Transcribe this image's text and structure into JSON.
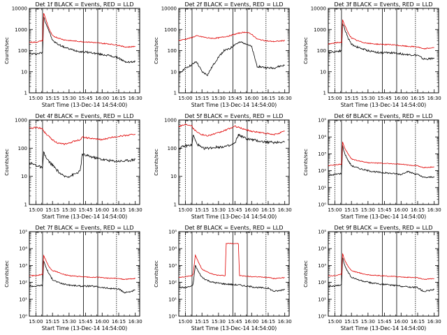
{
  "colors": {
    "events": "#000000",
    "lld": "#e00000",
    "axis": "#000000",
    "background": "#ffffff"
  },
  "chart_data": [
    {
      "type": "line",
      "title": "Det  1f BLACK = Events, RED = LLD",
      "ylabel": "Counts/sec",
      "xlabel": "Start Time (13-Dec-14 14:54:00)",
      "yscale": "log",
      "ylim": [
        1,
        10000
      ],
      "yticks": [
        "1",
        "10",
        "100",
        "1000",
        "10000"
      ],
      "xticks": [
        "15:00",
        "15:15",
        "15:30",
        "15:45",
        "16:00",
        "16:15",
        "16:30"
      ],
      "x": [
        "14:54",
        "15:00",
        "15:06",
        "15:07",
        "15:09",
        "15:12",
        "15:15",
        "15:20",
        "15:25",
        "15:30",
        "15:40",
        "15:50",
        "15:56",
        "16:00",
        "16:05",
        "16:15",
        "16:20",
        "16:25",
        "16:30"
      ],
      "series": [
        {
          "name": "Events",
          "values": [
            70,
            70,
            80,
            4000,
            2000,
            800,
            300,
            200,
            150,
            120,
            90,
            80,
            70,
            65,
            60,
            45,
            30,
            28,
            30
          ]
        },
        {
          "name": "LLD",
          "values": [
            250,
            250,
            300,
            6000,
            3000,
            1000,
            500,
            400,
            330,
            300,
            270,
            250,
            230,
            220,
            210,
            180,
            150,
            150,
            160
          ]
        }
      ]
    },
    {
      "type": "line",
      "title": "Det  2f BLACK = Events, RED = LLD",
      "ylabel": "Counts/sec",
      "xlabel": "Start Time (13-Dec-14 14:54:00)",
      "yscale": "log",
      "ylim": [
        1,
        10000
      ],
      "yticks": [
        "1",
        "10",
        "100",
        "1000",
        "10000"
      ],
      "xticks": [
        "15:00",
        "15:15",
        "15:30",
        "15:45",
        "16:00",
        "16:15",
        "16:30"
      ],
      "x": [
        "14:54",
        "15:00",
        "15:05",
        "15:10",
        "15:15",
        "15:20",
        "15:25",
        "15:30",
        "15:35",
        "15:40",
        "15:45",
        "15:50",
        "15:55",
        "16:00",
        "16:05",
        "16:15",
        "16:20",
        "16:25",
        "16:30"
      ],
      "series": [
        {
          "name": "Events",
          "values": [
            8,
            15,
            20,
            30,
            10,
            7,
            20,
            50,
            100,
            120,
            200,
            250,
            220,
            150,
            18,
            15,
            15,
            18,
            20
          ]
        },
        {
          "name": "LLD",
          "values": [
            300,
            350,
            400,
            500,
            450,
            400,
            380,
            400,
            450,
            500,
            600,
            700,
            750,
            600,
            350,
            280,
            270,
            280,
            300
          ]
        }
      ]
    },
    {
      "type": "line",
      "title": "Det  3f BLACK = Events, RED = LLD",
      "ylabel": "Counts/sec",
      "xlabel": "Start Time (13-Dec-14 14:54:00)",
      "yscale": "log",
      "ylim": [
        1,
        10000
      ],
      "yticks": [
        "1",
        "10",
        "100",
        "1000",
        "10000"
      ],
      "xticks": [
        "15:00",
        "15:15",
        "15:30",
        "15:45",
        "16:00",
        "16:15",
        "16:30"
      ],
      "x": [
        "14:54",
        "15:00",
        "15:06",
        "15:07",
        "15:09",
        "15:12",
        "15:15",
        "15:20",
        "15:25",
        "15:30",
        "15:40",
        "15:50",
        "15:56",
        "16:00",
        "16:05",
        "16:15",
        "16:20",
        "16:25",
        "16:30"
      ],
      "series": [
        {
          "name": "Events",
          "values": [
            80,
            90,
            100,
            2000,
            1000,
            400,
            200,
            150,
            120,
            100,
            80,
            80,
            75,
            70,
            65,
            60,
            40,
            40,
            45
          ]
        },
        {
          "name": "LLD",
          "values": [
            200,
            230,
            250,
            3000,
            1500,
            700,
            400,
            300,
            250,
            220,
            200,
            190,
            180,
            170,
            160,
            150,
            120,
            130,
            140
          ]
        }
      ]
    },
    {
      "type": "line",
      "title": "Det  4f BLACK = Events, RED = LLD",
      "ylabel": "Counts/sec",
      "xlabel": "Start Time (13-Dec-14 14:54:00)",
      "yscale": "log",
      "ylim": [
        1,
        1000
      ],
      "yticks": [
        "1",
        "10",
        "100",
        "1000"
      ],
      "xticks": [
        "15:00",
        "15:15",
        "15:30",
        "15:45",
        "16:00",
        "16:15",
        "16:30"
      ],
      "x": [
        "14:54",
        "15:00",
        "15:06",
        "15:07",
        "15:10",
        "15:15",
        "15:20",
        "15:25",
        "15:30",
        "15:35",
        "15:40",
        "15:42",
        "15:50",
        "16:00",
        "16:10",
        "16:20",
        "16:30"
      ],
      "series": [
        {
          "name": "Events",
          "values": [
            30,
            25,
            20,
            70,
            40,
            25,
            15,
            10,
            10,
            12,
            15,
            60,
            50,
            40,
            35,
            35,
            40
          ]
        },
        {
          "name": "LLD",
          "values": [
            500,
            550,
            500,
            400,
            300,
            200,
            150,
            140,
            150,
            180,
            200,
            250,
            220,
            200,
            250,
            280,
            320
          ]
        }
      ]
    },
    {
      "type": "line",
      "title": "Det  5f BLACK = Events, RED = LLD",
      "ylabel": "Counts/sec",
      "xlabel": "Start Time (13-Dec-14 14:54:00)",
      "yscale": "log",
      "ylim": [
        1,
        1000
      ],
      "yticks": [
        "1",
        "10",
        "100",
        "1000"
      ],
      "xticks": [
        "15:00",
        "15:15",
        "15:30",
        "15:45",
        "16:00",
        "16:15",
        "16:30"
      ],
      "x": [
        "14:54",
        "15:00",
        "15:06",
        "15:07",
        "15:10",
        "15:15",
        "15:20",
        "15:30",
        "15:40",
        "15:45",
        "15:48",
        "15:55",
        "16:00",
        "16:10",
        "16:20",
        "16:30"
      ],
      "series": [
        {
          "name": "Events",
          "values": [
            100,
            120,
            130,
            300,
            150,
            100,
            100,
            110,
            120,
            150,
            300,
            220,
            200,
            170,
            160,
            170
          ]
        },
        {
          "name": "LLD",
          "values": [
            600,
            700,
            650,
            500,
            400,
            300,
            280,
            350,
            500,
            600,
            550,
            450,
            400,
            350,
            300,
            400
          ]
        }
      ]
    },
    {
      "type": "line",
      "title": "Det  6f BLACK = Events, RED = LLD",
      "ylabel": "Counts/sec",
      "xlabel": "Start Time (13-Dec-14 14:54:00)",
      "yscale": "log",
      "ylim": [
        1,
        100000
      ],
      "yticks": [
        "10⁰",
        "10¹",
        "10²",
        "10³",
        "10⁴",
        "10⁵"
      ],
      "xticks": [
        "15:00",
        "15:15",
        "15:30",
        "15:45",
        "16:00",
        "16:15",
        "16:30"
      ],
      "x": [
        "14:54",
        "15:00",
        "15:06",
        "15:07",
        "15:09",
        "15:12",
        "15:15",
        "15:20",
        "15:25",
        "15:30",
        "15:40",
        "15:50",
        "15:56",
        "16:00",
        "16:05",
        "16:15",
        "16:20",
        "16:25",
        "16:30"
      ],
      "series": [
        {
          "name": "Events",
          "values": [
            50,
            60,
            70,
            3000,
            1000,
            400,
            200,
            150,
            120,
            100,
            80,
            70,
            65,
            60,
            90,
            60,
            40,
            40,
            45
          ]
        },
        {
          "name": "LLD",
          "values": [
            200,
            220,
            250,
            5000,
            2000,
            1000,
            500,
            400,
            350,
            300,
            280,
            260,
            250,
            240,
            220,
            200,
            150,
            160,
            170
          ]
        }
      ]
    },
    {
      "type": "line",
      "title": "Det  7f BLACK = Events, RED = LLD",
      "ylabel": "Counts/sec",
      "xlabel": "Start Time (13-Dec-14 14:54:00)",
      "yscale": "log",
      "ylim": [
        1,
        100000
      ],
      "yticks": [
        "10⁰",
        "10¹",
        "10²",
        "10³",
        "10⁴",
        "10⁵"
      ],
      "xticks": [
        "15:00",
        "15:15",
        "15:30",
        "15:45",
        "16:00",
        "16:15",
        "16:30"
      ],
      "x": [
        "14:54",
        "15:00",
        "15:06",
        "15:07",
        "15:09",
        "15:12",
        "15:15",
        "15:20",
        "15:25",
        "15:30",
        "15:40",
        "15:50",
        "15:56",
        "16:00",
        "16:05",
        "16:15",
        "16:20",
        "16:25",
        "16:30"
      ],
      "series": [
        {
          "name": "Events",
          "values": [
            60,
            60,
            70,
            2000,
            800,
            300,
            150,
            100,
            80,
            70,
            60,
            60,
            55,
            50,
            45,
            40,
            25,
            28,
            35
          ]
        },
        {
          "name": "LLD",
          "values": [
            250,
            250,
            300,
            4000,
            2000,
            800,
            500,
            400,
            300,
            250,
            220,
            200,
            200,
            190,
            180,
            170,
            150,
            160,
            170
          ]
        }
      ]
    },
    {
      "type": "line",
      "title": "Det  8f BLACK = Events, RED = LLD",
      "ylabel": "Counts/sec",
      "xlabel": "Start Time (13-Dec-14 14:54:00)",
      "yscale": "log",
      "ylim": [
        1,
        100000
      ],
      "yticks": [
        "10⁰",
        "10¹",
        "10²",
        "10³",
        "10⁴",
        "10⁵"
      ],
      "xticks": [
        "15:00",
        "15:15",
        "15:30",
        "15:45",
        "16:00",
        "16:15",
        "16:30"
      ],
      "x": [
        "14:54",
        "15:00",
        "15:06",
        "15:07",
        "15:09",
        "15:12",
        "15:15",
        "15:20",
        "15:25",
        "15:30",
        "15:36",
        "15:37",
        "15:48",
        "15:49",
        "15:55",
        "16:00",
        "16:05",
        "16:15",
        "16:20",
        "16:25",
        "16:30"
      ],
      "series": [
        {
          "name": "Events",
          "values": [
            50,
            50,
            60,
            80,
            1000,
            400,
            200,
            130,
            100,
            90,
            80,
            80,
            70,
            70,
            60,
            55,
            50,
            45,
            30,
            32,
            40
          ]
        },
        {
          "name": "LLD",
          "values": [
            200,
            220,
            250,
            300,
            4000,
            1500,
            600,
            400,
            300,
            260,
            250,
            20000,
            20000,
            250,
            230,
            220,
            210,
            200,
            170,
            180,
            190
          ]
        }
      ]
    },
    {
      "type": "line",
      "title": "Det  9f BLACK = Events, RED = LLD",
      "ylabel": "Counts/sec",
      "xlabel": "Start Time (13-Dec-14 14:54:00)",
      "yscale": "log",
      "ylim": [
        1,
        100000
      ],
      "yticks": [
        "10⁰",
        "10¹",
        "10²",
        "10³",
        "10⁴",
        "10⁵"
      ],
      "xticks": [
        "15:00",
        "15:15",
        "15:30",
        "15:45",
        "16:00",
        "16:15",
        "16:30"
      ],
      "x": [
        "14:54",
        "15:00",
        "15:06",
        "15:07",
        "15:09",
        "15:12",
        "15:15",
        "15:20",
        "15:25",
        "15:30",
        "15:40",
        "15:50",
        "15:56",
        "16:00",
        "16:05",
        "16:15",
        "16:20",
        "16:25",
        "16:30"
      ],
      "series": [
        {
          "name": "Events",
          "values": [
            60,
            60,
            70,
            3000,
            1000,
            400,
            200,
            150,
            120,
            100,
            80,
            70,
            65,
            60,
            55,
            50,
            30,
            32,
            38
          ]
        },
        {
          "name": "LLD",
          "values": [
            250,
            250,
            300,
            5000,
            2000,
            900,
            500,
            400,
            330,
            280,
            250,
            230,
            220,
            210,
            200,
            190,
            150,
            160,
            170
          ]
        }
      ]
    }
  ]
}
